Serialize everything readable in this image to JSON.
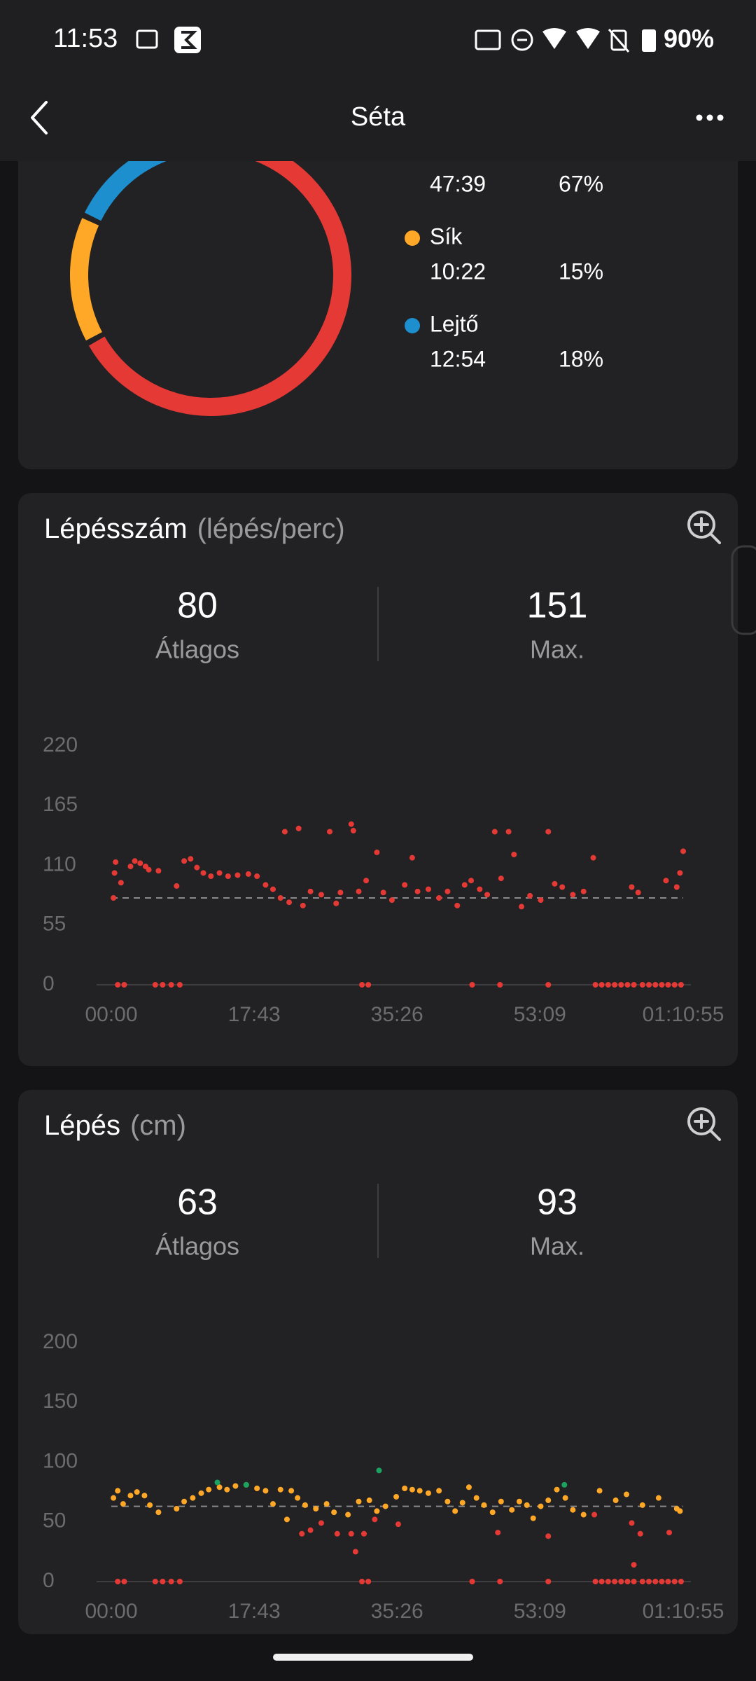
{
  "status_bar": {
    "time": "11:53",
    "battery": "90%"
  },
  "header": {
    "title": "Séta"
  },
  "chart_data": [
    {
      "type": "pie",
      "categories": [
        null,
        "Sík",
        "Lejtő"
      ],
      "values": [
        67,
        15,
        18
      ],
      "value_labels": [
        "67%",
        "15%",
        "18%"
      ],
      "durations": [
        "47:39",
        "10:22",
        "12:54"
      ],
      "colors": [
        "#e53935",
        "#ffa726",
        "#1e8fce"
      ]
    },
    {
      "type": "scatter",
      "title": "Lépésszám",
      "unit": "(lépés/perc)",
      "stats": [
        {
          "value": 80,
          "label": "Átlagos"
        },
        {
          "value": 151,
          "label": "Max."
        }
      ],
      "ylim": [
        0,
        220
      ],
      "yticks": [
        0,
        55,
        110,
        165,
        220
      ],
      "xlim": [
        0,
        4255
      ],
      "xticks": [
        {
          "value": 0,
          "label": "00:00"
        },
        {
          "value": 1063,
          "label": "17:43"
        },
        {
          "value": 2126,
          "label": "35:26"
        },
        {
          "value": 3189,
          "label": "53:09"
        },
        {
          "value": 4255,
          "label": "01:10:55"
        }
      ],
      "series": [
        {
          "color": "#e53935",
          "x": [
            16,
            24,
            32,
            72,
            143,
            175,
            215,
            255,
            279,
            351,
            486,
            542,
            590,
            637,
            685,
            741,
            805,
            869,
            940,
            1020,
            1084,
            1148,
            1203,
            1259,
            1291,
            1323,
            1394,
            1426,
            1482,
            1562,
            1625,
            1673,
            1705,
            1785,
            1801,
            1841,
            1896,
            1976,
            2024,
            2088,
            2183,
            2239,
            2279,
            2359,
            2438,
            2502,
            2574,
            2629,
            2677,
            2741,
            2797,
            2853,
            2900,
            2956,
            2996,
            3052,
            3115,
            3195,
            3251,
            3299,
            3355,
            3434,
            3514,
            3586,
            3872,
            3920,
            4127,
            4207,
            4231,
            4255,
            48,
            96,
            327,
            382,
            446,
            510,
            1865,
            1912,
            2685,
            2892,
            3251,
            3602,
            3649,
            3697,
            3745,
            3793,
            3841,
            3888,
            3952,
            4000,
            4048,
            4096,
            4143,
            4191,
            4239
          ],
          "values": [
            80,
            103,
            113,
            94,
            109,
            114,
            112,
            109,
            106,
            105,
            91,
            114,
            116,
            108,
            103,
            100,
            103,
            100,
            101,
            102,
            100,
            92,
            88,
            80,
            141,
            76,
            144,
            73,
            86,
            83,
            141,
            75,
            85,
            148,
            142,
            86,
            96,
            122,
            85,
            78,
            92,
            117,
            86,
            88,
            80,
            86,
            73,
            92,
            96,
            88,
            83,
            141,
            98,
            141,
            120,
            72,
            82,
            78,
            141,
            93,
            90,
            83,
            86,
            117,
            90,
            85,
            96,
            90,
            103,
            123,
            0,
            0,
            0,
            0,
            0,
            0,
            0,
            0,
            0,
            0,
            0,
            0,
            0,
            0,
            0,
            0,
            0,
            0,
            0,
            0,
            0,
            0,
            0,
            0,
            0
          ]
        }
      ]
    },
    {
      "type": "scatter",
      "title": "Lépés",
      "unit": "(cm)",
      "stats": [
        {
          "value": 63,
          "label": "Átlagos"
        },
        {
          "value": 93,
          "label": "Max."
        }
      ],
      "ylim": [
        0,
        200
      ],
      "yticks": [
        0,
        50,
        100,
        150,
        200
      ],
      "xlim": [
        0,
        4255
      ],
      "xticks": [
        {
          "value": 0,
          "label": "00:00"
        },
        {
          "value": 1063,
          "label": "17:43"
        },
        {
          "value": 2126,
          "label": "35:26"
        },
        {
          "value": 3189,
          "label": "53:09"
        },
        {
          "value": 4255,
          "label": "01:10:55"
        }
      ],
      "series": [
        {
          "color": "#ffa726",
          "x": [
            16,
            48,
            88,
            143,
            191,
            247,
            287,
            351,
            486,
            542,
            606,
            669,
            725,
            805,
            861,
            924,
            1004,
            1084,
            1148,
            1203,
            1259,
            1307,
            1339,
            1386,
            1442,
            1522,
            1602,
            1657,
            1761,
            1841,
            1920,
            1976,
            2040,
            2120,
            2183,
            2239,
            2295,
            2359,
            2438,
            2502,
            2558,
            2613,
            2661,
            2717,
            2773,
            2837,
            2900,
            2980,
            3036,
            3092,
            3139,
            3195,
            3251,
            3315,
            3378,
            3434,
            3514,
            3633,
            3753,
            3833,
            3952,
            4072,
            4207,
            4231
          ],
          "values": [
            70,
            76,
            65,
            72,
            75,
            72,
            64,
            58,
            61,
            67,
            70,
            74,
            77,
            79,
            77,
            80,
            81,
            78,
            76,
            65,
            77,
            52,
            76,
            70,
            64,
            61,
            65,
            58,
            56,
            67,
            68,
            59,
            63,
            71,
            78,
            77,
            76,
            74,
            76,
            67,
            59,
            66,
            79,
            70,
            64,
            58,
            67,
            60,
            67,
            64,
            53,
            63,
            68,
            77,
            70,
            60,
            56,
            76,
            68,
            73,
            64,
            70,
            61,
            59
          ]
        },
        {
          "color": "#e53935",
          "x": [
            1418,
            1482,
            1562,
            1681,
            1785,
            1817,
            1880,
            1960,
            2135,
            2876,
            3251,
            3594,
            3872,
            3888,
            3936,
            4151,
            48,
            96,
            327,
            382,
            446,
            510,
            1865,
            1912,
            2685,
            2892,
            3251,
            3602,
            3649,
            3697,
            3745,
            3793,
            3841,
            3888,
            3952,
            4000,
            4048,
            4096,
            4143,
            4191,
            4239
          ],
          "values": [
            40,
            43,
            49,
            40,
            40,
            25,
            40,
            52,
            48,
            41,
            38,
            56,
            49,
            14,
            40,
            41,
            0,
            0,
            0,
            0,
            0,
            0,
            0,
            0,
            0,
            0,
            0,
            0,
            0,
            0,
            0,
            0,
            0,
            0,
            0,
            0,
            0,
            0,
            0,
            0,
            0
          ]
        },
        {
          "color": "#1aa260",
          "x": [
            789,
            1004,
            1992,
            3371
          ],
          "values": [
            83,
            81,
            93,
            81
          ]
        }
      ]
    }
  ]
}
